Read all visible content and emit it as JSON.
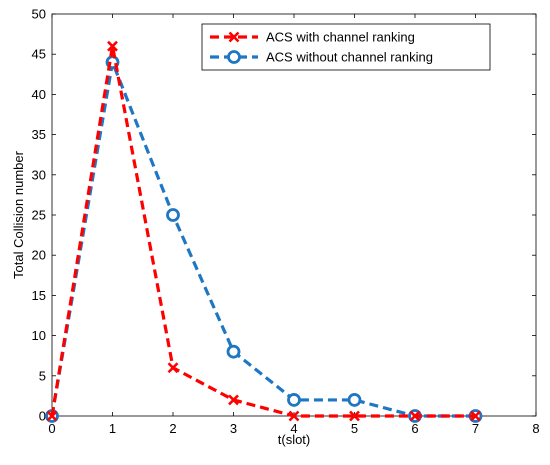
{
  "chart_data": {
    "type": "line",
    "xlabel": "t(slot)",
    "ylabel": "Total Collision number",
    "xlim": [
      0,
      8
    ],
    "ylim": [
      0,
      50
    ],
    "xticks": [
      0,
      1,
      2,
      3,
      4,
      5,
      6,
      7,
      8
    ],
    "yticks": [
      0,
      5,
      10,
      15,
      20,
      25,
      30,
      35,
      40,
      45,
      50
    ],
    "grid": false,
    "legend_position": "top-right",
    "x": [
      0,
      1,
      2,
      3,
      4,
      5,
      6,
      7
    ],
    "series": [
      {
        "name": "ACS with channel ranking",
        "values": [
          0,
          46,
          6,
          2,
          0,
          0,
          0,
          0
        ],
        "color": "#ff0000",
        "marker": "x",
        "line_style": "dashed"
      },
      {
        "name": "ACS without channel ranking",
        "values": [
          0,
          44,
          25,
          8,
          2,
          2,
          0,
          0
        ],
        "color": "#1f77c4",
        "marker": "circle",
        "line_style": "dashed"
      }
    ]
  }
}
